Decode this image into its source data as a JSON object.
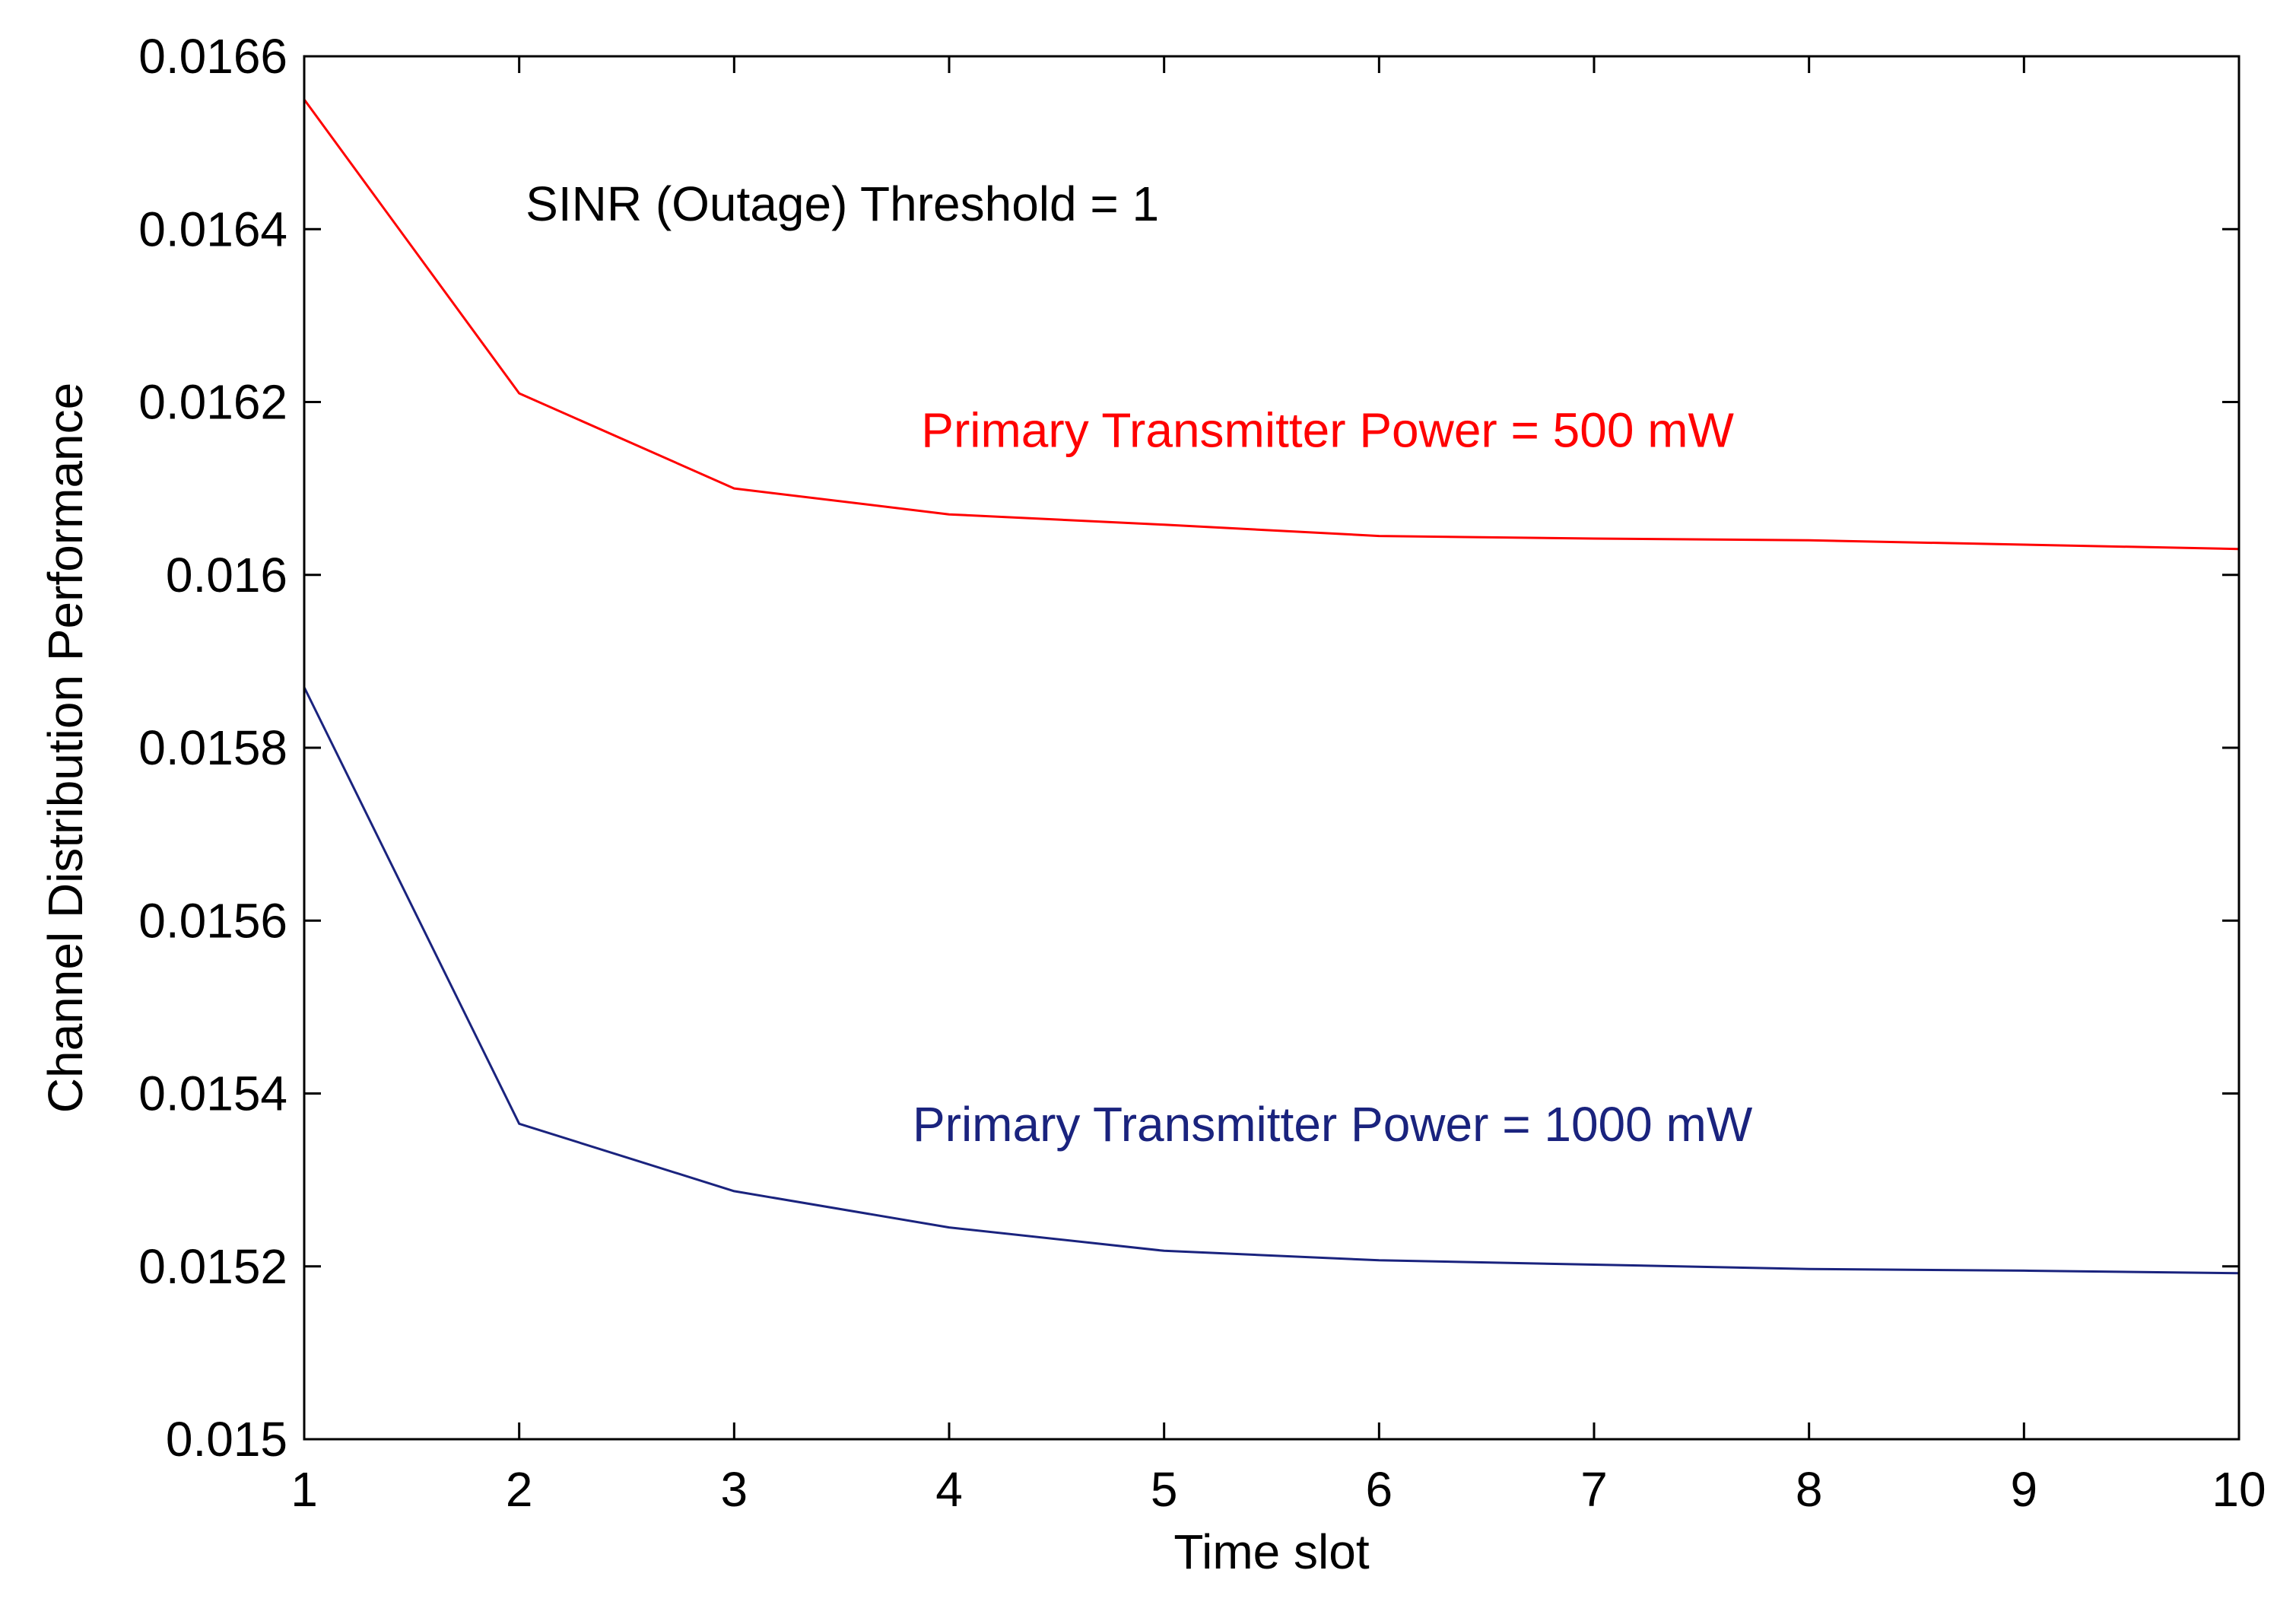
{
  "chart_data": {
    "type": "line",
    "title": "",
    "xlabel": "Time slot",
    "ylabel": "Channel Distribution Performance",
    "xlim": [
      1,
      10
    ],
    "ylim": [
      0.015,
      0.0166
    ],
    "x": [
      1,
      2,
      3,
      4,
      5,
      6,
      7,
      8,
      9,
      10
    ],
    "xticks": [
      "1",
      "2",
      "3",
      "4",
      "5",
      "6",
      "7",
      "8",
      "9",
      "10"
    ],
    "yticks": [
      0.015,
      0.0152,
      0.0154,
      0.0156,
      0.0158,
      0.016,
      0.0162,
      0.0164,
      0.0166
    ],
    "ytick_labels": [
      "0.015",
      "0.0152",
      "0.0154",
      "0.0156",
      "0.0158",
      "0.016",
      "0.0162",
      "0.0164",
      "0.0166"
    ],
    "grid": false,
    "series": [
      {
        "name": "Primary Transmitter Power = 500 mW",
        "color": "#ff0000",
        "values": [
          0.01655,
          0.01621,
          0.0161,
          0.01607,
          0.016058,
          0.016045,
          0.016042,
          0.01604,
          0.016035,
          0.01603
        ]
      },
      {
        "name": "Primary Transmitter Power = 1000 mW",
        "color": "#1a237e",
        "values": [
          0.01587,
          0.015365,
          0.015287,
          0.015245,
          0.015218,
          0.015207,
          0.015202,
          0.015197,
          0.015195,
          0.015192
        ]
      }
    ],
    "annotations": [
      {
        "text": "SINR (Outage) Threshold = 1",
        "color": "#000000",
        "x": 2.03,
        "y": 0.01641
      },
      {
        "text": "Primary Transmitter Power = 500 mW",
        "color": "#ff0000",
        "x": 3.87,
        "y": 0.016148
      },
      {
        "text": "Primary Transmitter Power = 1000 mW",
        "color": "#1a237e",
        "x": 3.83,
        "y": 0.015345
      }
    ]
  }
}
